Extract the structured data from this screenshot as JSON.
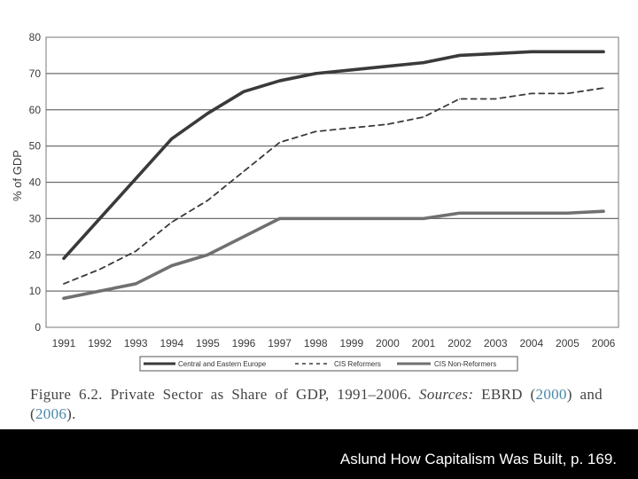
{
  "chart_data": {
    "type": "line",
    "title": "",
    "xlabel": "",
    "ylabel": "% of GDP",
    "ylim": [
      0,
      80
    ],
    "yticks": [
      0,
      10,
      20,
      30,
      40,
      50,
      60,
      70,
      80
    ],
    "grid": true,
    "legend_position": "bottom",
    "x": [
      "1991",
      "1992",
      "1993",
      "1994",
      "1995",
      "1996",
      "1997",
      "1998",
      "1999",
      "2000",
      "2001",
      "2002",
      "2003",
      "2004",
      "2005",
      "2006"
    ],
    "series": [
      {
        "name": "Central and Eastern Europe",
        "style": "solid-dark",
        "values": [
          19,
          30,
          41,
          52,
          59,
          65,
          68,
          70,
          71,
          72,
          73,
          75,
          75.5,
          76,
          76,
          76
        ]
      },
      {
        "name": "CIS Reformers",
        "style": "dashed",
        "values": [
          12,
          16,
          21,
          29,
          35,
          43,
          51,
          54,
          55,
          56,
          58,
          63,
          63,
          64.5,
          64.5,
          66
        ]
      },
      {
        "name": "CIS Non-Reformers",
        "style": "solid-gray",
        "values": [
          8,
          10,
          12,
          17,
          20,
          25,
          30,
          30,
          30,
          30,
          30,
          31.5,
          31.5,
          31.5,
          31.5,
          32
        ]
      }
    ]
  },
  "caption": {
    "figure_label": "Figure 6.2. Private Sector as Share of GDP, 1991–2006.",
    "sources_label": "Sources:",
    "source_name": "EBRD (",
    "ref_2000": "2000",
    "and_text": ") and (",
    "ref_2006": "2006",
    "end_text": ")."
  },
  "footer": {
    "text": "Aslund How Capitalism Was Built, p. 169."
  },
  "colors": {
    "cee": "#3a3a3a",
    "cis_reformers": "#3a3a3a",
    "cis_non_reformers": "#707070",
    "grid": "#6e6e6e",
    "footer_bg": "#000000"
  }
}
